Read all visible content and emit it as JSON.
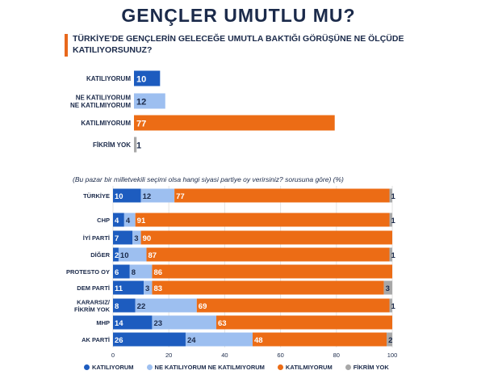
{
  "title": "GENÇLER UMUTLU MU?",
  "question": "TÜRKİYE'DE GENÇLERİN GELECEĞE UMUTLA BAKTIĞI GÖRÜŞÜNE NE ÖLÇÜDE KATILIYORSUNUZ?",
  "note": "(Bu pazar bir milletvekili seçimi olsa hangi siyasi partiye oy verirsiniz? sorusuna göre) (%)",
  "colors": {
    "agree": "#1d5cbf",
    "neutral": "#9dbff0",
    "disagree": "#ec6c15",
    "no_opinion": "#a8a8a8",
    "text": "#1b2a4a"
  },
  "chart_data": [
    {
      "type": "bar",
      "orientation": "horizontal",
      "categories": [
        "KATILIYORUM",
        "NE KATILIYORUM NE KATILMIYORUM",
        "KATILMIYORUM",
        "FİKRİM YOK"
      ],
      "category_lines": [
        [
          "KATILIYORUM"
        ],
        [
          "NE KATILIYORUM",
          "NE KATILMIYORUM"
        ],
        [
          "KATILMIYORUM"
        ],
        [
          "FİKRİM YOK"
        ]
      ],
      "values": [
        10,
        12,
        77,
        1
      ],
      "colors": [
        "#1d5cbf",
        "#9dbff0",
        "#ec6c15",
        "#a8a8a8"
      ],
      "data_labels": true
    },
    {
      "type": "bar",
      "orientation": "horizontal",
      "stacked": true,
      "categories": [
        "TÜRKİYE",
        "CHP",
        "İYİ PARTİ",
        "DİĞER",
        "PROTESTO OY",
        "DEM PARTİ",
        "KARARSIZ/ FİKRİM YOK",
        "MHP",
        "AK PARTİ"
      ],
      "category_lines": [
        [
          "TÜRKİYE"
        ],
        [
          "CHP"
        ],
        [
          "İYİ PARTİ"
        ],
        [
          "DİĞER"
        ],
        [
          "PROTESTO OY"
        ],
        [
          "DEM PARTİ"
        ],
        [
          "KARARSIZ/",
          "FİKRİM YOK"
        ],
        [
          "MHP"
        ],
        [
          "AK PARTİ"
        ]
      ],
      "series": [
        {
          "name": "KATILIYORUM",
          "color": "#1d5cbf",
          "values": [
            10,
            4,
            7,
            2,
            6,
            11,
            8,
            14,
            26
          ]
        },
        {
          "name": "NE KATILIYORUM NE KATILMIYORUM",
          "color": "#9dbff0",
          "values": [
            12,
            4,
            3,
            10,
            8,
            3,
            22,
            23,
            24
          ]
        },
        {
          "name": "KATILMIYORUM",
          "color": "#ec6c15",
          "values": [
            77,
            91,
            90,
            87,
            86,
            83,
            69,
            63,
            48
          ]
        },
        {
          "name": "FİKRİM YOK",
          "color": "#a8a8a8",
          "values": [
            1,
            1,
            0,
            1,
            0,
            3,
            1,
            0,
            2
          ]
        }
      ],
      "xlim": [
        0,
        100
      ],
      "xticks": [
        0,
        20,
        40,
        60,
        80,
        100
      ],
      "grid": true,
      "legend_position": "bottom"
    }
  ]
}
